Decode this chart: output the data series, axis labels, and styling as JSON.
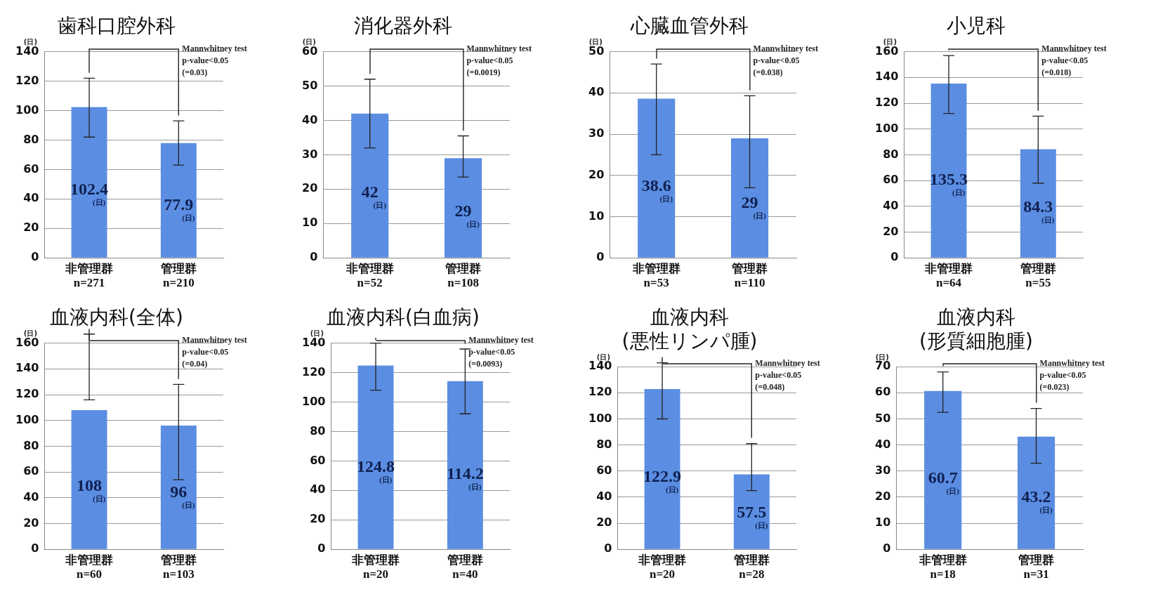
{
  "chart_data": [
    {
      "type": "bar",
      "title": "歯科口腔外科",
      "ylabel": "(日)",
      "categories": [
        "非管理群\nn=271",
        "管理群\nn=210"
      ],
      "values": [
        102.4,
        77.9
      ],
      "errors": [
        [
          82,
          122
        ],
        [
          63,
          93
        ]
      ],
      "value_labels": [
        "102.4\n(日)",
        "77.9\n(日)"
      ],
      "color": "#5b8ee2",
      "ylim": [
        0,
        140
      ],
      "yticks": [
        0,
        20,
        40,
        60,
        80,
        100,
        120,
        140
      ],
      "grid": "y",
      "annotations": [
        "Mannwhitney test",
        "p-value<0.05",
        "(=0.03)"
      ]
    },
    {
      "type": "bar",
      "title": "消化器外科",
      "ylabel": "(日)",
      "categories": [
        "非管理群\nn=52",
        "管理群\nn=108"
      ],
      "values": [
        42,
        29
      ],
      "errors": [
        [
          32,
          52
        ],
        [
          23.5,
          35.5
        ]
      ],
      "value_labels": [
        "42\n(日)",
        "29\n(日)"
      ],
      "color": "#5b8ee2",
      "ylim": [
        0,
        60
      ],
      "yticks": [
        0,
        10,
        20,
        30,
        40,
        50,
        60
      ],
      "grid": "y",
      "annotations": [
        "Mannwhitney test",
        "p-value<0.05",
        "(=0.0019)"
      ]
    },
    {
      "type": "bar",
      "title": "心臓血管外科",
      "ylabel": "(日)",
      "categories": [
        "非管理群\nn=53",
        "管理群\nn=110"
      ],
      "values": [
        38.6,
        29
      ],
      "errors": [
        [
          25,
          47
        ],
        [
          17,
          39.3
        ]
      ],
      "value_labels": [
        "38.6\n(日)",
        "29\n(日)"
      ],
      "color": "#5b8ee2",
      "ylim": [
        0,
        50
      ],
      "yticks": [
        0,
        10,
        20,
        30,
        40,
        50
      ],
      "grid": "y",
      "annotations": [
        "Mannwhitney test",
        "p-value<0.05",
        "(=0.038)"
      ]
    },
    {
      "type": "bar",
      "title": "小児科",
      "ylabel": "(日)",
      "categories": [
        "非管理群\nn=64",
        "管理群\nn=55"
      ],
      "values": [
        135.3,
        84.3
      ],
      "errors": [
        [
          112,
          157
        ],
        [
          58,
          110
        ]
      ],
      "value_labels": [
        "135.3\n(日)",
        "84.3\n(日)"
      ],
      "color": "#5b8ee2",
      "ylim": [
        0,
        160
      ],
      "yticks": [
        0,
        20,
        40,
        60,
        80,
        100,
        120,
        140,
        160
      ],
      "grid": "y",
      "annotations": [
        "Mannwhitney test",
        "p-value<0.05",
        "(=0.018)"
      ]
    },
    {
      "type": "bar",
      "title": "血液内科(全体)",
      "ylabel": "(日)",
      "categories": [
        "非管理群\nn=60",
        "管理群\nn=103"
      ],
      "values": [
        108,
        96
      ],
      "errors": [
        [
          116,
          167
        ],
        [
          54,
          128
        ]
      ],
      "value_labels": [
        "108\n(日)",
        "96\n(日)"
      ],
      "color": "#5b8ee2",
      "ylim": [
        0,
        160
      ],
      "yticks": [
        0,
        20,
        40,
        60,
        80,
        100,
        120,
        140,
        160
      ],
      "grid": "y",
      "annotations": [
        "Mannwhitney test",
        "p-value<0.05",
        "(=0.04)"
      ]
    },
    {
      "type": "bar",
      "title": "血液内科(白血病)",
      "ylabel": "(日)",
      "categories": [
        "非管理群\nn=20",
        "管理群\nn=40"
      ],
      "values": [
        124.8,
        114.2
      ],
      "errors": [
        [
          108,
          140
        ],
        [
          92,
          136
        ]
      ],
      "value_labels": [
        "124.8\n(日)",
        "114.2\n(日)"
      ],
      "color": "#5b8ee2",
      "ylim": [
        0,
        140
      ],
      "yticks": [
        0,
        20,
        40,
        60,
        80,
        100,
        120,
        140
      ],
      "grid": "y",
      "annotations": [
        "Mannwhitney test",
        "p-value<0.05",
        "(=0.0093)"
      ]
    },
    {
      "type": "bar",
      "title": "血液内科\n(悪性リンパ腫)",
      "ylabel": "(日)",
      "categories": [
        "非管理群\nn=20",
        "管理群\nn=28"
      ],
      "values": [
        122.9,
        57.5
      ],
      "errors": [
        [
          100,
          143
        ],
        [
          45,
          81
        ]
      ],
      "value_labels": [
        "122.9\n(日)",
        "57.5\n(日)"
      ],
      "color": "#5b8ee2",
      "ylim": [
        0,
        140
      ],
      "yticks": [
        0,
        20,
        40,
        60,
        80,
        100,
        120,
        140
      ],
      "grid": "y",
      "annotations": [
        "Mannwhitney test",
        "p-value<0.05",
        "(=0.048)"
      ]
    },
    {
      "type": "bar",
      "title": "血液内科\n(形質細胞腫)",
      "ylabel": "(日)",
      "categories": [
        "非管理群\nn=18",
        "管理群\nn=31"
      ],
      "values": [
        60.7,
        43.2
      ],
      "errors": [
        [
          52.5,
          68
        ],
        [
          33,
          54
        ]
      ],
      "value_labels": [
        "60.7\n(日)",
        "43.2\n(日)"
      ],
      "color": "#5b8ee2",
      "ylim": [
        0,
        70
      ],
      "yticks": [
        0,
        10,
        20,
        30,
        40,
        50,
        60,
        70
      ],
      "grid": "y",
      "annotations": [
        "Mannwhitney test",
        "p-value<0.05",
        "(=0.023)"
      ]
    }
  ]
}
